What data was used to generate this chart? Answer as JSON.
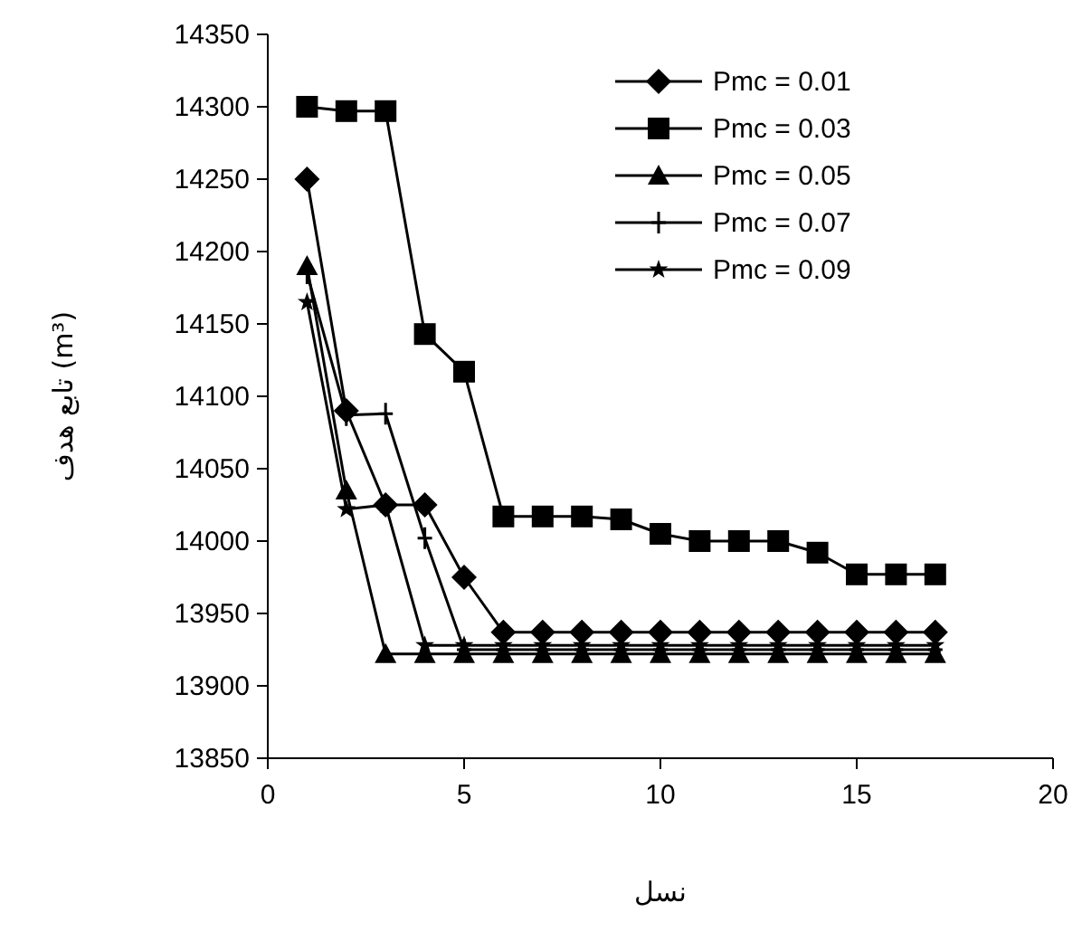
{
  "chart_data": {
    "type": "line",
    "xlabel": "نسل",
    "ylabel": "تابع هدف (m³)",
    "x": [
      1,
      2,
      3,
      4,
      5,
      6,
      7,
      8,
      9,
      10,
      11,
      12,
      13,
      14,
      15,
      16,
      17
    ],
    "xlim": [
      0,
      20
    ],
    "xticks": [
      0,
      5,
      10,
      15,
      20
    ],
    "ylim": [
      13850,
      14350
    ],
    "yticks": [
      13850,
      13900,
      13950,
      14000,
      14050,
      14100,
      14150,
      14200,
      14250,
      14300,
      14350
    ],
    "grid": false,
    "legend": "top right",
    "line_style": "solid",
    "series": [
      {
        "name": "Pmc = 0.01",
        "color": "#000000",
        "marker": "diamond",
        "values": [
          14250,
          14090,
          14025,
          14025,
          13975,
          13937,
          13937,
          13937,
          13937,
          13937,
          13937,
          13937,
          13937,
          13937,
          13937,
          13937,
          13937
        ]
      },
      {
        "name": "Pmc = 0.03",
        "color": "#000000",
        "marker": "square",
        "values": [
          14300,
          14297,
          14297,
          14143,
          14117,
          14017,
          14017,
          14017,
          14015,
          14005,
          14000,
          14000,
          14000,
          13992,
          13977,
          13977,
          13977
        ]
      },
      {
        "name": "Pmc = 0.05",
        "color": "#000000",
        "marker": "triangle",
        "values": [
          14190,
          14035,
          13922,
          13922,
          13922,
          13922,
          13922,
          13922,
          13922,
          13922,
          13922,
          13922,
          13922,
          13922,
          13922,
          13922,
          13922
        ]
      },
      {
        "name": "Pmc = 0.07",
        "color": "#000000",
        "marker": "cross",
        "values": [
          14185,
          14087,
          14088,
          14002,
          13925,
          13925,
          13925,
          13925,
          13925,
          13925,
          13925,
          13925,
          13925,
          13925,
          13925,
          13925,
          13925
        ]
      },
      {
        "name": "Pmc = 0.09",
        "color": "#000000",
        "marker": "star",
        "values": [
          14165,
          14022,
          14025,
          13928,
          13928,
          13928,
          13928,
          13928,
          13928,
          13928,
          13928,
          13928,
          13928,
          13928,
          13928,
          13928,
          13928
        ]
      }
    ]
  }
}
